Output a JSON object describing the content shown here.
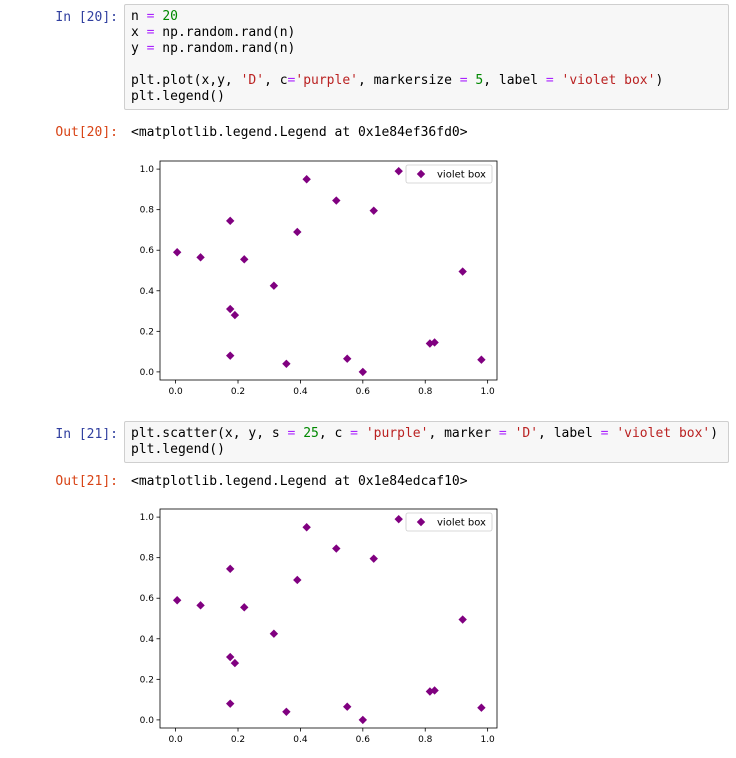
{
  "cells": [
    {
      "in_prompt": "In [20]:",
      "out_prompt": "Out[20]:",
      "code": [
        [
          {
            "t": "n "
          },
          {
            "t": "=",
            "c": "op"
          },
          {
            "t": " "
          },
          {
            "t": "20",
            "c": "num"
          }
        ],
        [
          {
            "t": "x "
          },
          {
            "t": "=",
            "c": "op"
          },
          {
            "t": " np.random.rand(n)"
          }
        ],
        [
          {
            "t": "y "
          },
          {
            "t": "=",
            "c": "op"
          },
          {
            "t": " np.random.rand(n)"
          }
        ],
        [],
        [
          {
            "t": "plt.plot(x,y, "
          },
          {
            "t": "'D'",
            "c": "str"
          },
          {
            "t": ", c"
          },
          {
            "t": "=",
            "c": "op"
          },
          {
            "t": "'purple'",
            "c": "str"
          },
          {
            "t": ", markersize "
          },
          {
            "t": "=",
            "c": "op"
          },
          {
            "t": " "
          },
          {
            "t": "5",
            "c": "num"
          },
          {
            "t": ", label "
          },
          {
            "t": "=",
            "c": "op"
          },
          {
            "t": " "
          },
          {
            "t": "'violet box'",
            "c": "str"
          },
          {
            "t": ")"
          }
        ],
        [
          {
            "t": "plt.legend()"
          }
        ]
      ],
      "output_text": "<matplotlib.legend.Legend at 0x1e84ef36fd0>"
    },
    {
      "in_prompt": "In [21]:",
      "out_prompt": "Out[21]:",
      "code": [
        [
          {
            "t": "plt.scatter(x, y, s "
          },
          {
            "t": "=",
            "c": "op"
          },
          {
            "t": " "
          },
          {
            "t": "25",
            "c": "num"
          },
          {
            "t": ", c "
          },
          {
            "t": "=",
            "c": "op"
          },
          {
            "t": " "
          },
          {
            "t": "'purple'",
            "c": "str"
          },
          {
            "t": ", marker "
          },
          {
            "t": "=",
            "c": "op"
          },
          {
            "t": " "
          },
          {
            "t": "'D'",
            "c": "str"
          },
          {
            "t": ", label "
          },
          {
            "t": "=",
            "c": "op"
          },
          {
            "t": " "
          },
          {
            "t": "'violet box'",
            "c": "str"
          },
          {
            "t": ")"
          }
        ],
        [
          {
            "t": "plt.legend()"
          }
        ]
      ],
      "output_text": "<matplotlib.legend.Legend at 0x1e84edcaf10>"
    }
  ],
  "chart_data": [
    {
      "type": "scatter",
      "marker": "diamond",
      "color": "#800080",
      "xlim": [
        -0.05,
        1.03
      ],
      "ylim": [
        -0.04,
        1.04
      ],
      "xticks": [
        "0.0",
        "0.2",
        "0.4",
        "0.6",
        "0.8",
        "1.0"
      ],
      "yticks": [
        "0.0",
        "0.2",
        "0.4",
        "0.6",
        "0.8",
        "1.0"
      ],
      "grid": false,
      "legend": {
        "entries": [
          "violet box"
        ],
        "position": "upper right"
      },
      "series": [
        {
          "name": "violet box",
          "x": [
            0.005,
            0.08,
            0.175,
            0.175,
            0.19,
            0.175,
            0.22,
            0.315,
            0.355,
            0.39,
            0.42,
            0.515,
            0.55,
            0.6,
            0.635,
            0.715,
            0.815,
            0.83,
            0.92,
            0.98
          ],
          "y": [
            0.59,
            0.565,
            0.745,
            0.31,
            0.28,
            0.08,
            0.555,
            0.425,
            0.04,
            0.69,
            0.95,
            0.845,
            0.065,
            0.0,
            0.795,
            0.99,
            0.14,
            0.145,
            0.495,
            0.06
          ]
        }
      ]
    },
    {
      "type": "scatter",
      "marker": "diamond",
      "color": "#800080",
      "xlim": [
        -0.05,
        1.03
      ],
      "ylim": [
        -0.04,
        1.04
      ],
      "xticks": [
        "0.0",
        "0.2",
        "0.4",
        "0.6",
        "0.8",
        "1.0"
      ],
      "yticks": [
        "0.0",
        "0.2",
        "0.4",
        "0.6",
        "0.8",
        "1.0"
      ],
      "grid": false,
      "legend": {
        "entries": [
          "violet box"
        ],
        "position": "upper right"
      },
      "series": [
        {
          "name": "violet box",
          "x": [
            0.005,
            0.08,
            0.175,
            0.175,
            0.19,
            0.175,
            0.22,
            0.315,
            0.355,
            0.39,
            0.42,
            0.515,
            0.55,
            0.6,
            0.635,
            0.715,
            0.815,
            0.83,
            0.92,
            0.98
          ],
          "y": [
            0.59,
            0.565,
            0.745,
            0.31,
            0.28,
            0.08,
            0.555,
            0.425,
            0.04,
            0.69,
            0.95,
            0.845,
            0.065,
            0.0,
            0.795,
            0.99,
            0.14,
            0.145,
            0.495,
            0.06
          ]
        }
      ]
    }
  ]
}
